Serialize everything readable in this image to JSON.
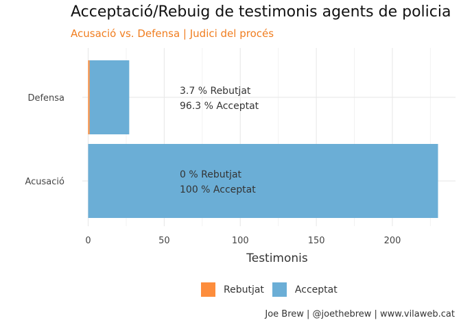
{
  "chart_data": {
    "type": "bar",
    "orientation": "horizontal",
    "stacked": true,
    "title": "Acceptació/Rebuig de testimonis agents de policia",
    "subtitle": "Acusació vs. Defensa | Judici del procés",
    "xlabel": "Testimonis",
    "ylabel": "",
    "categories": [
      "Acusació",
      "Defensa"
    ],
    "series": [
      {
        "name": "Rebutjat",
        "color": "#fd8d3c",
        "values": [
          0,
          1
        ]
      },
      {
        "name": "Acceptat",
        "color": "#6baed6",
        "values": [
          230,
          26
        ]
      }
    ],
    "xlim": [
      0,
      232
    ],
    "xticks": [
      0,
      50,
      100,
      150,
      200
    ],
    "xtick_labels": [
      "0",
      "50",
      "100",
      "150",
      "200"
    ],
    "annotations": [
      {
        "category": "Defensa",
        "lines": [
          "3.7 % Rebutjat",
          "96.3 % Acceptat"
        ]
      },
      {
        "category": "Acusació",
        "lines": [
          "0 % Rebutjat",
          "100 % Acceptat"
        ]
      }
    ],
    "grid": true,
    "legend_position": "bottom",
    "caption": "Joe Brew | @joethebrew | www.vilaweb.cat"
  }
}
